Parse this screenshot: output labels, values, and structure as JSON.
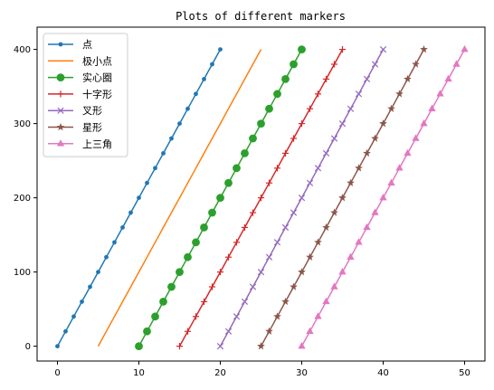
{
  "chart_data": {
    "type": "line",
    "title": "Plots of different markers",
    "xlabel": "",
    "ylabel": "",
    "xlim": [
      -2.5,
      52.5
    ],
    "ylim": [
      -20,
      430
    ],
    "xticks": [
      0,
      10,
      20,
      30,
      40,
      50
    ],
    "yticks": [
      0,
      100,
      200,
      300,
      400
    ],
    "grid": false,
    "legend_position": "top-left",
    "series": [
      {
        "name": "点",
        "marker": "point",
        "color": "#1f77b4",
        "x_start": 0,
        "x_end": 20,
        "y_start": 0,
        "y_end": 400,
        "points": 21
      },
      {
        "name": "极小点",
        "marker": "pixel",
        "color": "#ff7f0e",
        "x_start": 5,
        "x_end": 25,
        "y_start": 0,
        "y_end": 400,
        "points": 21
      },
      {
        "name": "实心圈",
        "marker": "circle",
        "color": "#2ca02c",
        "x_start": 10,
        "x_end": 30,
        "y_start": 0,
        "y_end": 400,
        "points": 21
      },
      {
        "name": "十字形",
        "marker": "plus",
        "color": "#d62728",
        "x_start": 15,
        "x_end": 35,
        "y_start": 0,
        "y_end": 400,
        "points": 21
      },
      {
        "name": "叉形",
        "marker": "x",
        "color": "#9467bd",
        "x_start": 20,
        "x_end": 40,
        "y_start": 0,
        "y_end": 400,
        "points": 21
      },
      {
        "name": "星形",
        "marker": "star",
        "color": "#8c564b",
        "x_start": 25,
        "x_end": 45,
        "y_start": 0,
        "y_end": 400,
        "points": 21
      },
      {
        "name": "上三角",
        "marker": "triangle-up",
        "color": "#e377c2",
        "x_start": 30,
        "x_end": 50,
        "y_start": 0,
        "y_end": 400,
        "points": 21
      }
    ]
  }
}
